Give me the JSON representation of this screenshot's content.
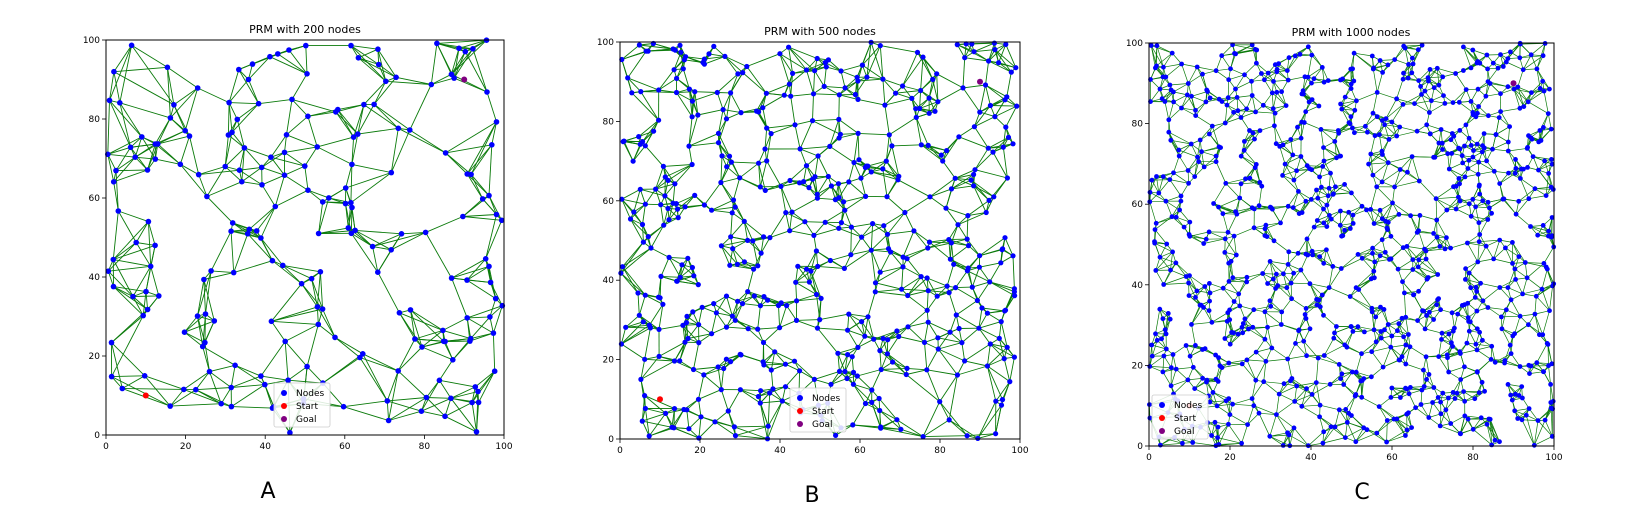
{
  "panels": [
    {
      "label": "A",
      "chart_data": {
        "type": "scatter",
        "title": "PRM with 200 nodes",
        "xlim": [
          0,
          100
        ],
        "ylim": [
          0,
          100
        ],
        "xticks": [
          "0",
          "20",
          "40",
          "60",
          "80",
          "100"
        ],
        "yticks": [
          "0",
          "20",
          "40",
          "60",
          "80",
          "100"
        ],
        "num_nodes": 200,
        "start": [
          10,
          10
        ],
        "goal": [
          90,
          90
        ],
        "legend": [
          "Nodes",
          "Start",
          "Goal"
        ],
        "legend_position": "lower-center"
      }
    },
    {
      "label": "B",
      "chart_data": {
        "type": "scatter",
        "title": "PRM with 500 nodes",
        "xlim": [
          0,
          100
        ],
        "ylim": [
          0,
          100
        ],
        "xticks": [
          "0",
          "20",
          "40",
          "60",
          "80",
          "100"
        ],
        "yticks": [
          "0",
          "20",
          "40",
          "60",
          "80",
          "100"
        ],
        "num_nodes": 500,
        "start": [
          10,
          10
        ],
        "goal": [
          90,
          90
        ],
        "legend": [
          "Nodes",
          "Start",
          "Goal"
        ],
        "legend_position": "lower-center"
      }
    },
    {
      "label": "C",
      "chart_data": {
        "type": "scatter",
        "title": "PRM with 1000 nodes",
        "xlim": [
          0,
          100
        ],
        "ylim": [
          0,
          100
        ],
        "xticks": [
          "0",
          "20",
          "40",
          "60",
          "80",
          "100"
        ],
        "yticks": [
          "0",
          "20",
          "40",
          "60",
          "80",
          "100"
        ],
        "num_nodes": 1000,
        "start": [
          10,
          10
        ],
        "goal": [
          90,
          90
        ],
        "legend": [
          "Nodes",
          "Start",
          "Goal"
        ],
        "legend_position": "lower-left"
      }
    }
  ],
  "colors": {
    "node": "#0000ff",
    "edge": "#0a7a0a",
    "start": "#ff0000",
    "goal": "#800080"
  }
}
